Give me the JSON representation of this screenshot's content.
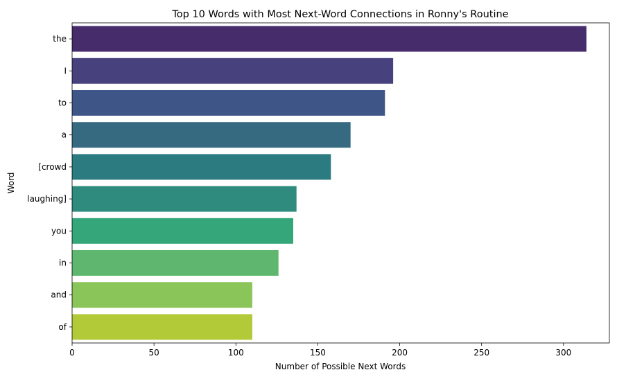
{
  "chart_data": {
    "type": "bar",
    "orientation": "horizontal",
    "title": "Top 10 Words with Most Next-Word Connections in Ronny's Routine",
    "xlabel": "Number of Possible Next Words",
    "ylabel": "Word",
    "categories": [
      "the",
      "I",
      "to",
      "a",
      "[crowd",
      "laughing]",
      "you",
      "in",
      "and",
      "of"
    ],
    "values": [
      314,
      196,
      191,
      170,
      158,
      137,
      135,
      126,
      110,
      110
    ],
    "colors": [
      "#472c6c",
      "#47427d",
      "#3e5587",
      "#366a80",
      "#2c7b80",
      "#2f8b7d",
      "#34a67a",
      "#5fb66f",
      "#8ac55a",
      "#b2ca38"
    ],
    "xlim": [
      0,
      328
    ],
    "xticks": [
      0,
      50,
      100,
      150,
      200,
      250,
      300
    ],
    "grid": false,
    "legend": "none"
  }
}
